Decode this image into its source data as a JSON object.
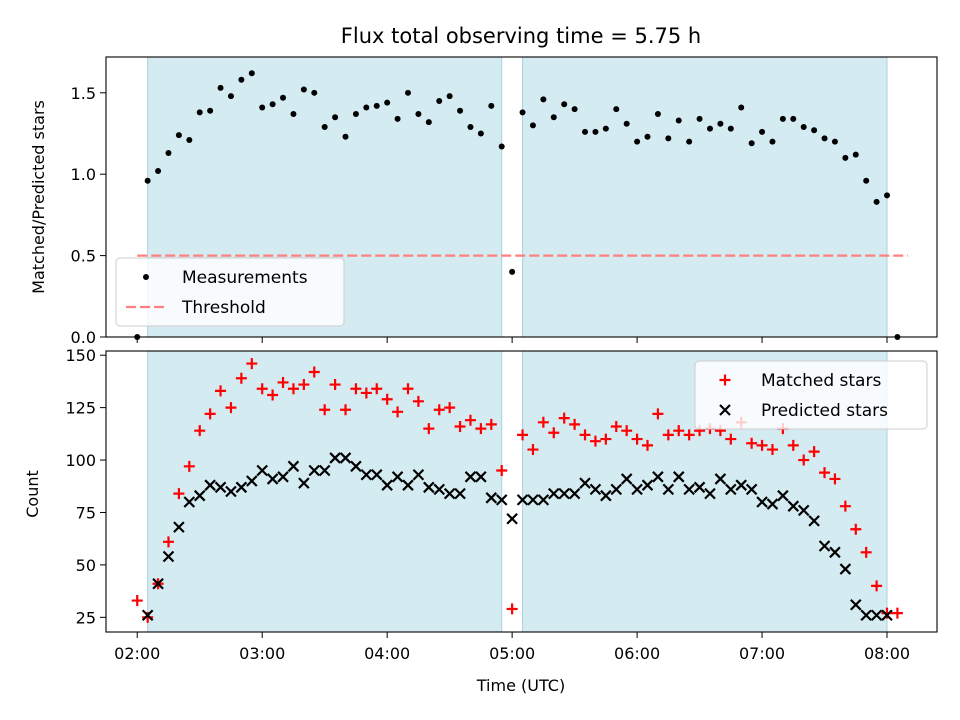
{
  "title": "Flux total observing time = 5.75 h",
  "shaded_regions": [
    [
      "02:05",
      "04:55"
    ],
    [
      "05:05",
      "08:00"
    ]
  ],
  "chart_data": [
    {
      "type": "scatter",
      "ylabel": "Matched/Predicted stars",
      "xlabel": "",
      "xlim": [
        "01:45",
        "08:24"
      ],
      "ylim": [
        0,
        1.72
      ],
      "yticks": [
        0.0,
        0.5,
        1.0,
        1.5
      ],
      "ytick_labels": [
        "0.0",
        "0.5",
        "1.0",
        "1.5"
      ],
      "legend_position": "lower-left",
      "threshold": {
        "name": "Threshold",
        "value": 0.5,
        "x_range": [
          "02:00",
          "08:10"
        ],
        "color": "#ff7f7f",
        "style": "dashed"
      },
      "series": [
        {
          "name": "Measurements",
          "marker": "dot",
          "color": "#000000",
          "x": [
            "02:00",
            "02:05",
            "02:10",
            "02:15",
            "02:20",
            "02:25",
            "02:30",
            "02:35",
            "02:40",
            "02:45",
            "02:50",
            "02:55",
            "03:00",
            "03:05",
            "03:10",
            "03:15",
            "03:20",
            "03:25",
            "03:30",
            "03:35",
            "03:40",
            "03:45",
            "03:50",
            "03:55",
            "04:00",
            "04:05",
            "04:10",
            "04:15",
            "04:20",
            "04:25",
            "04:30",
            "04:35",
            "04:40",
            "04:45",
            "04:50",
            "04:55",
            "05:00",
            "05:05",
            "05:10",
            "05:15",
            "05:20",
            "05:25",
            "05:30",
            "05:35",
            "05:40",
            "05:45",
            "05:50",
            "05:55",
            "06:00",
            "06:05",
            "06:10",
            "06:15",
            "06:20",
            "06:25",
            "06:30",
            "06:35",
            "06:40",
            "06:45",
            "06:50",
            "06:55",
            "07:00",
            "07:05",
            "07:10",
            "07:15",
            "07:20",
            "07:25",
            "07:30",
            "07:35",
            "07:40",
            "07:45",
            "07:50",
            "07:55",
            "08:00",
            "08:05"
          ],
          "y": [
            0.0,
            0.96,
            1.02,
            1.13,
            1.24,
            1.21,
            1.38,
            1.39,
            1.53,
            1.48,
            1.58,
            1.62,
            1.41,
            1.43,
            1.47,
            1.37,
            1.52,
            1.5,
            1.29,
            1.35,
            1.23,
            1.37,
            1.41,
            1.42,
            1.44,
            1.34,
            1.5,
            1.37,
            1.32,
            1.45,
            1.48,
            1.39,
            1.29,
            1.25,
            1.42,
            1.17,
            0.4,
            1.38,
            1.3,
            1.46,
            1.35,
            1.43,
            1.4,
            1.26,
            1.26,
            1.28,
            1.4,
            1.31,
            1.2,
            1.23,
            1.37,
            1.22,
            1.33,
            1.2,
            1.34,
            1.28,
            1.31,
            1.28,
            1.41,
            1.19,
            1.26,
            1.2,
            1.34,
            1.34,
            1.29,
            1.27,
            1.22,
            1.2,
            1.1,
            1.12,
            0.96,
            0.83,
            0.87,
            0.0
          ]
        }
      ]
    },
    {
      "type": "scatter",
      "ylabel": "Count",
      "xlabel": "Time (UTC)",
      "xlim": [
        "01:45",
        "08:24"
      ],
      "ylim": [
        18,
        152
      ],
      "yticks": [
        25,
        50,
        75,
        100,
        125,
        150
      ],
      "ytick_labels": [
        "25",
        "50",
        "75",
        "100",
        "125",
        "150"
      ],
      "xticks": [
        "02:00",
        "03:00",
        "04:00",
        "05:00",
        "06:00",
        "07:00",
        "08:00"
      ],
      "legend_position": "upper-right",
      "series": [
        {
          "name": "Matched stars",
          "marker": "plus",
          "color": "#ff0000",
          "x": [
            "02:00",
            "02:05",
            "02:10",
            "02:15",
            "02:20",
            "02:25",
            "02:30",
            "02:35",
            "02:40",
            "02:45",
            "02:50",
            "02:55",
            "03:00",
            "03:05",
            "03:10",
            "03:15",
            "03:20",
            "03:25",
            "03:30",
            "03:35",
            "03:40",
            "03:45",
            "03:50",
            "03:55",
            "04:00",
            "04:05",
            "04:10",
            "04:15",
            "04:20",
            "04:25",
            "04:30",
            "04:35",
            "04:40",
            "04:45",
            "04:50",
            "04:55",
            "05:00",
            "05:05",
            "05:10",
            "05:15",
            "05:20",
            "05:25",
            "05:30",
            "05:35",
            "05:40",
            "05:45",
            "05:50",
            "05:55",
            "06:00",
            "06:05",
            "06:10",
            "06:15",
            "06:20",
            "06:25",
            "06:30",
            "06:35",
            "06:40",
            "06:45",
            "06:50",
            "06:55",
            "07:00",
            "07:05",
            "07:10",
            "07:15",
            "07:20",
            "07:25",
            "07:30",
            "07:35",
            "07:40",
            "07:45",
            "07:50",
            "07:55",
            "08:00",
            "08:05"
          ],
          "y": [
            33,
            25,
            41,
            61,
            84,
            97,
            114,
            122,
            133,
            125,
            139,
            146,
            134,
            131,
            137,
            134,
            136,
            142,
            124,
            136,
            124,
            134,
            132,
            134,
            129,
            123,
            134,
            128,
            115,
            124,
            125,
            116,
            119,
            115,
            117,
            95,
            29,
            112,
            105,
            118,
            113,
            120,
            117,
            112,
            109,
            110,
            116,
            114,
            110,
            107,
            122,
            112,
            114,
            112,
            114,
            115,
            114,
            110,
            118,
            108,
            107,
            105,
            115,
            107,
            100,
            104,
            94,
            91,
            78,
            67,
            56,
            40,
            27,
            27
          ]
        },
        {
          "name": "Predicted stars",
          "marker": "x",
          "color": "#000000",
          "x": [
            "02:05",
            "02:10",
            "02:15",
            "02:20",
            "02:25",
            "02:30",
            "02:35",
            "02:40",
            "02:45",
            "02:50",
            "02:55",
            "03:00",
            "03:05",
            "03:10",
            "03:15",
            "03:20",
            "03:25",
            "03:30",
            "03:35",
            "03:40",
            "03:45",
            "03:50",
            "03:55",
            "04:00",
            "04:05",
            "04:10",
            "04:15",
            "04:20",
            "04:25",
            "04:30",
            "04:35",
            "04:40",
            "04:45",
            "04:50",
            "04:55",
            "05:00",
            "05:05",
            "05:10",
            "05:15",
            "05:20",
            "05:25",
            "05:30",
            "05:35",
            "05:40",
            "05:45",
            "05:50",
            "05:55",
            "06:00",
            "06:05",
            "06:10",
            "06:15",
            "06:20",
            "06:25",
            "06:30",
            "06:35",
            "06:40",
            "06:45",
            "06:50",
            "06:55",
            "07:00",
            "07:05",
            "07:10",
            "07:15",
            "07:20",
            "07:25",
            "07:30",
            "07:35",
            "07:40",
            "07:45",
            "07:50",
            "07:55",
            "08:00"
          ],
          "y": [
            26,
            41,
            54,
            68,
            80,
            83,
            88,
            87,
            85,
            87,
            90,
            95,
            91,
            92,
            97,
            89,
            95,
            95,
            101,
            101,
            97,
            93,
            93,
            88,
            92,
            88,
            93,
            87,
            86,
            84,
            84,
            92,
            92,
            82,
            81,
            72,
            81,
            81,
            81,
            84,
            84,
            84,
            89,
            86,
            83,
            86,
            91,
            86,
            88,
            92,
            86,
            92,
            86,
            87,
            84,
            91,
            86,
            88,
            86,
            80,
            79,
            83,
            78,
            76,
            71,
            59,
            56,
            48,
            31,
            26,
            26,
            26
          ]
        }
      ]
    }
  ]
}
